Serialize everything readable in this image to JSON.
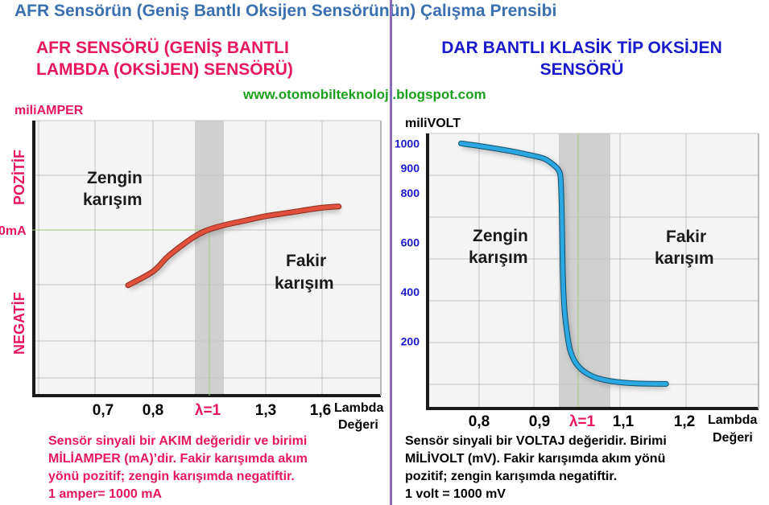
{
  "page": {
    "title": "AFR Sensörün (Geniş Bantlı Oksijen Sensörünün) Çalışma Prensibi",
    "left_heading": [
      "AFR SENSÖRÜ (GENİŞ BANTLI",
      "LAMBDA (OKSİJEN) SENSÖRÜ)"
    ],
    "right_heading": [
      "DAR BANTLI KLASİK TİP OKSİJEN",
      "SENSÖRÜ"
    ],
    "url": "www.otomobilteknoloji.blogspot.com",
    "left_note": [
      "Sensör sinyali bir AKIM değeridir ve birimi",
      "MİLİAMPER (mA)’dir. Fakir karışımda akım",
      "yönü pozitif; zengin karışımda negatiftir.",
      "1 amper= 1000 mA"
    ],
    "right_note": [
      "Sensör sinyali bir VOLTAJ değeridir. Birimi",
      "MİLİVOLT (mV). Fakir karışımda akım yönü",
      "pozitif; zengin karışımda negatiftir.",
      "1 volt = 1000 mV"
    ]
  },
  "chart_data": [
    {
      "type": "line",
      "ylabel": "miliAMPER",
      "xlabel": "Lambda Değeri",
      "x_ticks": [
        "0,7",
        "0,8",
        "λ=1",
        "1,3",
        "1,6"
      ],
      "y_tick": "0mA",
      "y_side_labels": {
        "positive": "POZİTİF",
        "negative": "NEGATİF"
      },
      "annotations": {
        "rich": "Zengin karışım",
        "lean": "Fakir karışım"
      },
      "series": [
        {
          "x": [
            0.75,
            0.8,
            0.85,
            0.9,
            0.95,
            1.0,
            1.1,
            1.2,
            1.3,
            1.4,
            1.5,
            1.6,
            1.7
          ],
          "y": [
            -40,
            -30,
            -20,
            -12,
            -5,
            0,
            4,
            7,
            10,
            12,
            14,
            16,
            17
          ]
        }
      ],
      "colors": {
        "series": "#e0503c",
        "band": "#cfcfcf",
        "grid": "#c4c4c4",
        "axis": "#1a1a1a"
      },
      "grid": true
    },
    {
      "type": "line",
      "ylabel": "miliVOLT",
      "xlabel": "Lambda Değeri",
      "x_ticks": [
        "0,8",
        "0,9",
        "λ=1",
        "1,1",
        "1,2"
      ],
      "y_ticks": [
        "1000",
        "900",
        "800",
        "600",
        "400",
        "200"
      ],
      "annotations": {
        "rich": "Zengin karışım",
        "lean": "Fakir karışım"
      },
      "series": [
        {
          "x": [
            0.77,
            0.8,
            0.85,
            0.88,
            0.91,
            0.935,
            0.95,
            0.955,
            0.958,
            0.96,
            0.962,
            0.965,
            0.97,
            0.98,
            1.0,
            1.03,
            1.07,
            1.12,
            1.17
          ],
          "y": [
            1000,
            990,
            970,
            955,
            940,
            915,
            890,
            850,
            700,
            500,
            400,
            320,
            250,
            160,
            100,
            60,
            40,
            30,
            28
          ]
        }
      ],
      "colors": {
        "series": "#2ba8e0",
        "band": "#cfcfcf",
        "grid": "#c4c4c4",
        "axis": "#1a1a1a"
      },
      "grid": true
    }
  ]
}
